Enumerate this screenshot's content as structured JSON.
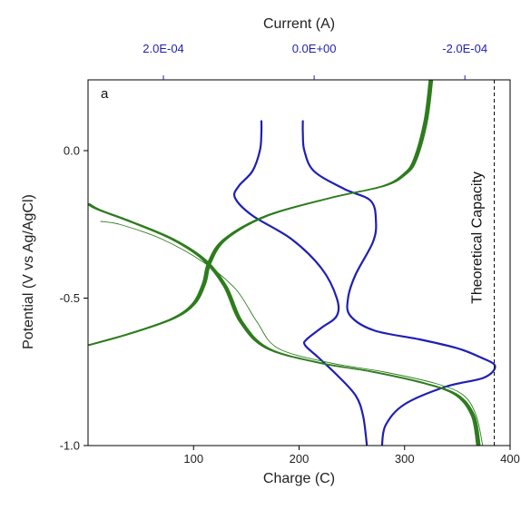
{
  "chart_data": {
    "type": "line",
    "panel_label": "a",
    "xlabel": "Charge (C)",
    "ylabel": "Potential (V vs Ag/AgCl)",
    "top_xlabel": "Current (A)",
    "xlim": [
      0,
      400
    ],
    "ylim": [
      -1.0,
      0.24
    ],
    "top_xlim": [
      0.0003,
      -0.00026
    ],
    "x_ticks": [
      100,
      200,
      300,
      400
    ],
    "x_tick_labels": [
      "100",
      "200",
      "300",
      "400"
    ],
    "y_ticks": [
      0.0,
      -0.5,
      -1.0
    ],
    "y_tick_labels": [
      "0.0",
      "-0.5",
      "-1.0"
    ],
    "top_ticks": [
      0.0002,
      0.0,
      -0.0002
    ],
    "top_tick_labels": [
      "2.0E-04",
      "0.0E+00",
      "-2.0E-04"
    ],
    "theoretical_capacity": {
      "x": 385,
      "label": "Theoretical Capacity"
    },
    "colors": {
      "charge_curves": "#2e7d1e",
      "current_curves": "#1f1fb4",
      "top_axis": "#1f1fb4",
      "axes": "#000000"
    },
    "grid": false,
    "series": [
      {
        "axis": "current",
        "cycles": 1,
        "points": [
          [
            7e-05,
            0.1
          ],
          [
            7e-05,
            0.06
          ],
          [
            7.2e-05,
            0.0
          ],
          [
            8.2e-05,
            -0.07
          ],
          [
            0.0001,
            -0.12
          ],
          [
            0.000105,
            -0.16
          ],
          [
            8.2e-05,
            -0.22
          ],
          [
            3e-05,
            -0.3
          ],
          [
            -1e-05,
            -0.4
          ],
          [
            -3e-05,
            -0.5
          ],
          [
            -3e-05,
            -0.56
          ],
          [
            -1e-05,
            -0.6
          ],
          [
            1e-05,
            -0.64
          ],
          [
            1.2e-05,
            -0.66
          ],
          [
            -5e-06,
            -0.7
          ],
          [
            -3e-05,
            -0.76
          ],
          [
            -5.5e-05,
            -0.83
          ],
          [
            -6.5e-05,
            -0.9
          ],
          [
            -7e-05,
            -1.0
          ]
        ]
      },
      {
        "axis": "current",
        "cycles": 1,
        "points": [
          [
            1.5e-05,
            0.1
          ],
          [
            1.5e-05,
            0.06
          ],
          [
            1.3e-05,
            0.0
          ],
          [
            0.0,
            -0.07
          ],
          [
            -4e-05,
            -0.13
          ],
          [
            -7.5e-05,
            -0.17
          ],
          [
            -8.2e-05,
            -0.24
          ],
          [
            -7.8e-05,
            -0.31
          ],
          [
            -5.5e-05,
            -0.42
          ],
          [
            -4.5e-05,
            -0.5
          ],
          [
            -4.8e-05,
            -0.56
          ],
          [
            -8e-05,
            -0.61
          ],
          [
            -0.00014,
            -0.64
          ],
          [
            -0.00019,
            -0.67
          ],
          [
            -0.00022,
            -0.7
          ],
          [
            -0.00024,
            -0.73
          ],
          [
            -0.000225,
            -0.77
          ],
          [
            -0.000175,
            -0.8
          ],
          [
            -0.00012,
            -0.86
          ],
          [
            -9.5e-05,
            -0.93
          ],
          [
            -9e-05,
            -1.0
          ]
        ]
      },
      {
        "axis": "charge",
        "cycles": 10,
        "spread": 4,
        "points": [
          [
            0,
            -0.18
          ],
          [
            10,
            -0.2
          ],
          [
            40,
            -0.24
          ],
          [
            80,
            -0.3
          ],
          [
            110,
            -0.37
          ],
          [
            130,
            -0.46
          ],
          [
            145,
            -0.58
          ],
          [
            170,
            -0.67
          ],
          [
            220,
            -0.72
          ],
          [
            270,
            -0.75
          ],
          [
            320,
            -0.79
          ],
          [
            350,
            -0.83
          ],
          [
            365,
            -0.9
          ],
          [
            370,
            -1.0
          ]
        ]
      },
      {
        "axis": "charge",
        "cycles": 10,
        "spread": 4,
        "points": [
          [
            0,
            -0.66
          ],
          [
            40,
            -0.62
          ],
          [
            80,
            -0.57
          ],
          [
            100,
            -0.52
          ],
          [
            110,
            -0.45
          ],
          [
            115,
            -0.38
          ],
          [
            130,
            -0.3
          ],
          [
            170,
            -0.22
          ],
          [
            230,
            -0.16
          ],
          [
            280,
            -0.12
          ],
          [
            300,
            -0.08
          ],
          [
            310,
            -0.03
          ],
          [
            320,
            0.1
          ],
          [
            325,
            0.24
          ]
        ]
      },
      {
        "axis": "charge",
        "cycles": 1,
        "points": [
          [
            12,
            -0.24
          ],
          [
            30,
            -0.25
          ],
          [
            70,
            -0.3
          ],
          [
            110,
            -0.38
          ],
          [
            140,
            -0.47
          ],
          [
            160,
            -0.58
          ],
          [
            180,
            -0.67
          ],
          [
            230,
            -0.72
          ],
          [
            280,
            -0.75
          ],
          [
            330,
            -0.79
          ],
          [
            356,
            -0.83
          ],
          [
            368,
            -0.9
          ],
          [
            374,
            -1.0
          ]
        ]
      }
    ]
  }
}
